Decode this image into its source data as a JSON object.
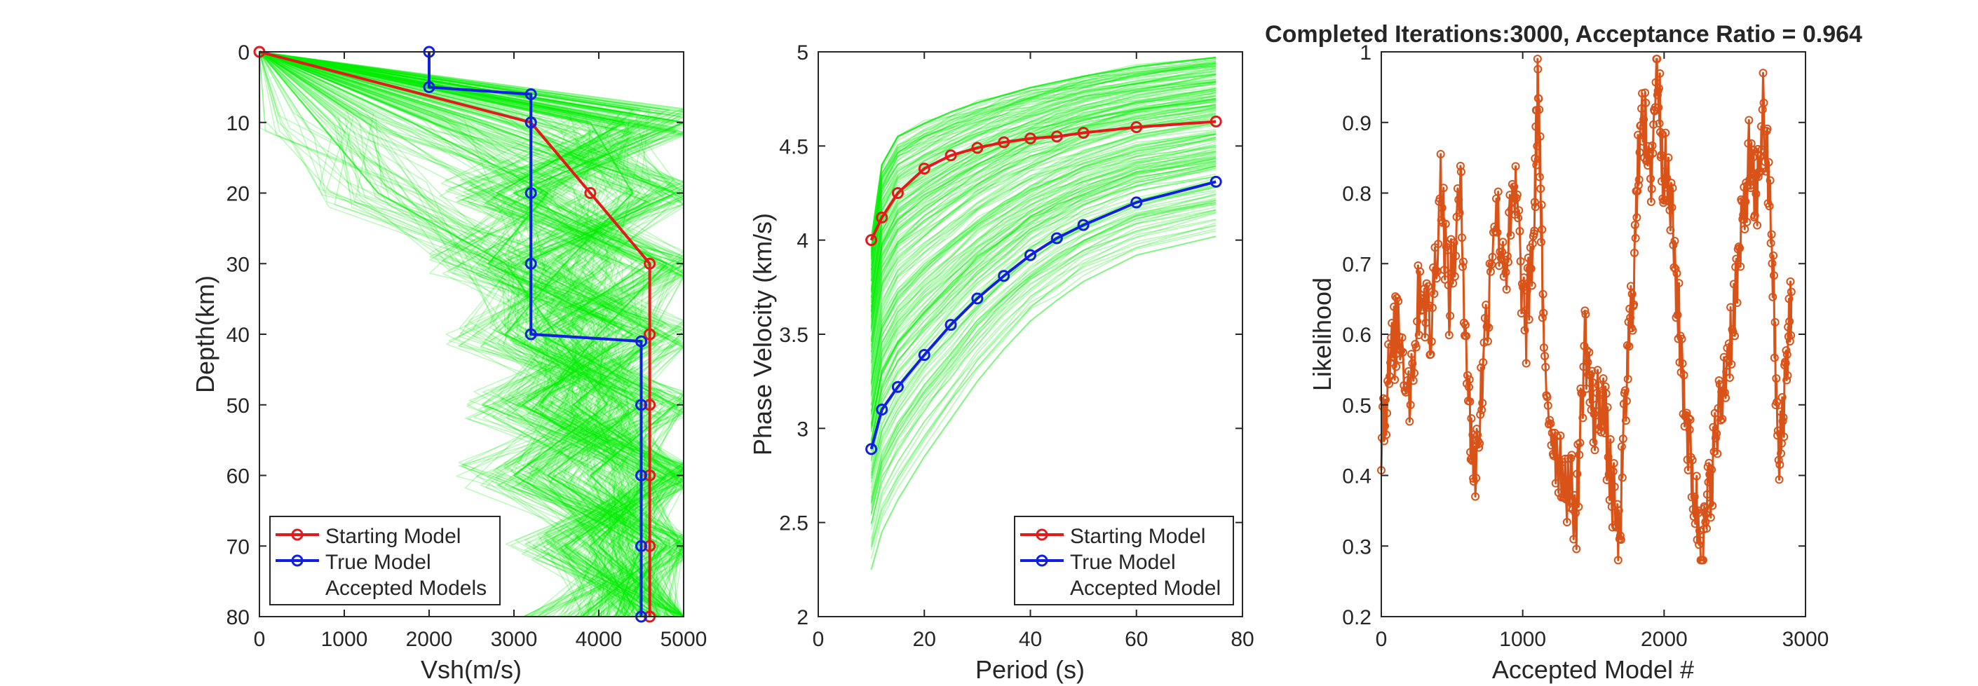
{
  "figure": {
    "title": "Completed Iterations:3000, Acceptance Ratio = 0.964"
  },
  "colors": {
    "accepted": "#00ee00",
    "starting": "#e31a1c",
    "true_model": "#1020e0",
    "likelihood": "#d95319",
    "axes": "#262626"
  },
  "chart_data": [
    {
      "type": "line",
      "panel": "velocity-model",
      "xlabel": "Vsh(m/s)",
      "ylabel": "Depth(km)",
      "xlim": [
        0,
        5000
      ],
      "ylim": [
        0,
        80
      ],
      "y_reversed": true,
      "xticks": [
        "0",
        "1000",
        "2000",
        "3000",
        "4000",
        "5000"
      ],
      "yticks": [
        "0",
        "10",
        "20",
        "30",
        "40",
        "50",
        "60",
        "70",
        "80"
      ],
      "legend": {
        "position": "bottom-left",
        "entries": [
          "Starting Model",
          "True Model",
          "Accepted Models"
        ]
      },
      "series": [
        {
          "name": "Starting Model",
          "color": "#e31a1c",
          "x": [
            0,
            3200,
            3900,
            4600,
            4600,
            4600,
            4600,
            4600,
            4600
          ],
          "y": [
            0,
            10,
            20,
            30,
            40,
            50,
            60,
            70,
            80
          ]
        },
        {
          "name": "True Model",
          "color": "#1020e0",
          "x": [
            2000,
            2000,
            3200,
            3200,
            3200,
            3200,
            3200,
            4500,
            4500,
            4500,
            4500,
            4500
          ],
          "y": [
            0,
            5,
            6,
            10,
            20,
            30,
            40,
            41,
            50,
            60,
            70,
            80
          ]
        },
        {
          "name": "Accepted Models",
          "color": "#00ee00",
          "sample_paths": [
            {
              "x": [
                0,
                700,
                1400,
                2900,
                3500,
                4100,
                3000,
                4500,
                4200
              ],
              "y": [
                0,
                10,
                20,
                30,
                40,
                50,
                60,
                70,
                80
              ]
            },
            {
              "x": [
                0,
                2600,
                4900,
                3100,
                4700,
                3700,
                4900,
                3600,
                4700
              ],
              "y": [
                0,
                10,
                20,
                30,
                40,
                50,
                60,
                70,
                80
              ]
            },
            {
              "x": [
                0,
                4300,
                2800,
                4600,
                3300,
                4900,
                3900,
                4800,
                3800
              ],
              "y": [
                0,
                10,
                20,
                30,
                40,
                50,
                60,
                70,
                80
              ]
            },
            {
              "x": [
                0,
                1800,
                3400,
                2700,
                4400,
                3100,
                4600,
                4000,
                4900
              ],
              "y": [
                0,
                10,
                20,
                30,
                40,
                50,
                60,
                70,
                80
              ]
            },
            {
              "x": [
                0,
                3900,
                4400,
                3600,
                2900,
                4500,
                3400,
                4700,
                4300
              ],
              "y": [
                0,
                10,
                20,
                30,
                40,
                50,
                60,
                70,
                80
              ]
            },
            {
              "x": [
                0,
                5000,
                3000,
                4800,
                4000,
                3300,
                4800,
                3900,
                4500
              ],
              "y": [
                0,
                10,
                20,
                30,
                40,
                50,
                60,
                70,
                80
              ]
            }
          ]
        }
      ]
    },
    {
      "type": "line",
      "panel": "dispersion",
      "xlabel": "Period (s)",
      "ylabel": "Phase Velocity (km/s)",
      "xlim": [
        0,
        80
      ],
      "ylim": [
        2,
        5
      ],
      "xticks": [
        "0",
        "20",
        "40",
        "60",
        "80"
      ],
      "yticks": [
        "2",
        "2.5",
        "3",
        "3.5",
        "4",
        "4.5",
        "5"
      ],
      "legend": {
        "position": "bottom-right",
        "entries": [
          "Starting Model",
          "True Model",
          "Accepted Model"
        ]
      },
      "series": [
        {
          "name": "Starting Model",
          "color": "#e31a1c",
          "x": [
            10,
            12,
            15,
            20,
            25,
            30,
            35,
            40,
            45,
            50,
            60,
            75
          ],
          "y": [
            4.0,
            4.12,
            4.25,
            4.38,
            4.45,
            4.49,
            4.52,
            4.54,
            4.55,
            4.57,
            4.6,
            4.63
          ]
        },
        {
          "name": "True Model",
          "color": "#1020e0",
          "x": [
            10,
            12,
            15,
            20,
            25,
            30,
            35,
            40,
            45,
            50,
            60,
            75
          ],
          "y": [
            2.89,
            3.1,
            3.22,
            3.39,
            3.55,
            3.69,
            3.81,
            3.92,
            4.01,
            4.08,
            4.2,
            4.31
          ]
        },
        {
          "name": "Accepted Model",
          "color": "#00ee00",
          "period_grid": [
            10,
            12,
            15,
            20,
            25,
            30,
            35,
            40,
            45,
            50,
            60,
            75
          ],
          "envelope_low": [
            2.25,
            2.45,
            2.62,
            2.85,
            3.05,
            3.25,
            3.42,
            3.57,
            3.68,
            3.78,
            3.92,
            4.02
          ],
          "envelope_high": [
            4.0,
            4.4,
            4.55,
            4.62,
            4.68,
            4.73,
            4.77,
            4.81,
            4.84,
            4.87,
            4.92,
            4.97
          ]
        }
      ]
    },
    {
      "type": "line",
      "panel": "likelihood-trace",
      "title": "Completed Iterations:3000, Acceptance Ratio = 0.964",
      "xlabel": "Accepted Model #",
      "ylabel": "Likelihood",
      "xlim": [
        0,
        3000
      ],
      "ylim": [
        0.2,
        1
      ],
      "xticks": [
        "0",
        "1000",
        "2000",
        "3000"
      ],
      "yticks": [
        "0.2",
        "0.3",
        "0.4",
        "0.5",
        "0.6",
        "0.7",
        "0.8",
        "0.9",
        "1"
      ],
      "series": [
        {
          "name": "Likelihood",
          "color": "#d95319",
          "x": [
            0,
            60,
            120,
            200,
            280,
            350,
            420,
            480,
            560,
            620,
            660,
            720,
            800,
            880,
            950,
            1020,
            1080,
            1110,
            1150,
            1220,
            1300,
            1380,
            1440,
            1500,
            1560,
            1620,
            1680,
            1740,
            1790,
            1840,
            1900,
            1950,
            1990,
            2050,
            2110,
            2170,
            2230,
            2280,
            2330,
            2400,
            2470,
            2540,
            2600,
            2650,
            2700,
            2760,
            2810,
            2860,
            2900
          ],
          "y": [
            0.46,
            0.55,
            0.62,
            0.52,
            0.68,
            0.6,
            0.82,
            0.65,
            0.8,
            0.5,
            0.4,
            0.55,
            0.78,
            0.7,
            0.8,
            0.6,
            0.75,
            0.98,
            0.55,
            0.45,
            0.4,
            0.35,
            0.6,
            0.48,
            0.52,
            0.4,
            0.3,
            0.55,
            0.7,
            0.95,
            0.8,
            0.99,
            0.85,
            0.78,
            0.6,
            0.45,
            0.35,
            0.3,
            0.4,
            0.5,
            0.6,
            0.72,
            0.85,
            0.78,
            0.92,
            0.75,
            0.4,
            0.55,
            0.66
          ]
        }
      ]
    }
  ]
}
